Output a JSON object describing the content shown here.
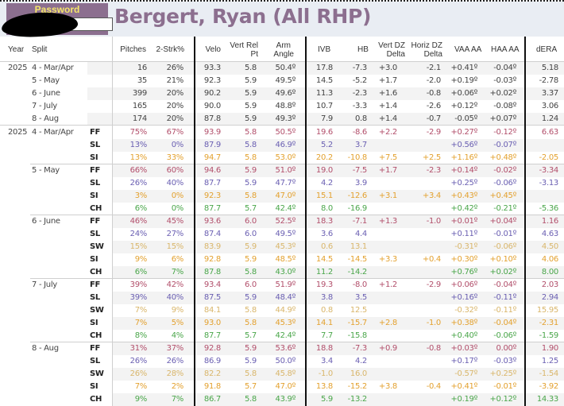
{
  "header": {
    "password_label": "Password",
    "password_value": "",
    "title": "Bergert, Ryan (All RHP)"
  },
  "colors": {
    "title": "#8c6f8f",
    "password_label": "#f5e66a",
    "FF": "#b24f6b",
    "SL": "#6a5fb2",
    "SW": "#d9b66b",
    "SI": "#e3a12f",
    "CH": "#4aa64a"
  },
  "columns": {
    "year": "Year",
    "split": "Split",
    "pitches": "Pitches",
    "two_strk": "2-Strk%",
    "velo": "Velo",
    "vert_rel_1": "Vert Rel",
    "vert_rel_2": "Pt",
    "arm_1": "Arm",
    "arm_2": "Angle",
    "ivb": "IVB",
    "hb": "HB",
    "vdz_1": "Vert DZ",
    "vdz_2": "Delta",
    "hdz_1": "Horiz DZ",
    "hdz_2": "Delta",
    "vaa": "VAA AA",
    "haa": "HAA AA",
    "dera": "dERA"
  },
  "summary_rows": [
    {
      "year": "2025",
      "split": "4 - Mar/Apr",
      "pitches": "16",
      "two_strk": "26%",
      "velo": "93.3",
      "vrp": "5.8",
      "arm": "50.4º",
      "ivb": "17.8",
      "hb": "-7.3",
      "vdz": "+3.0",
      "hdz": "-2.1",
      "vaa": "+0.41º",
      "haa": "-0.04º",
      "dera": "5.18"
    },
    {
      "year": "",
      "split": "5 - May",
      "pitches": "35",
      "two_strk": "21%",
      "velo": "92.3",
      "vrp": "5.9",
      "arm": "49.5º",
      "ivb": "14.5",
      "hb": "-5.2",
      "vdz": "+1.7",
      "hdz": "-2.0",
      "vaa": "+0.19º",
      "haa": "-0.03º",
      "dera": "-2.78"
    },
    {
      "year": "",
      "split": "6 - June",
      "pitches": "399",
      "two_strk": "20%",
      "velo": "90.2",
      "vrp": "5.9",
      "arm": "49.6º",
      "ivb": "11.3",
      "hb": "-2.3",
      "vdz": "+1.6",
      "hdz": "-0.8",
      "vaa": "+0.06º",
      "haa": "+0.02º",
      "dera": "3.37"
    },
    {
      "year": "",
      "split": "7 - July",
      "pitches": "165",
      "two_strk": "20%",
      "velo": "90.0",
      "vrp": "5.9",
      "arm": "48.8º",
      "ivb": "10.7",
      "hb": "-3.3",
      "vdz": "+1.4",
      "hdz": "-2.6",
      "vaa": "+0.12º",
      "haa": "-0.08º",
      "dera": "3.06"
    },
    {
      "year": "",
      "split": "8 - Aug",
      "pitches": "174",
      "two_strk": "20%",
      "velo": "87.8",
      "vrp": "5.9",
      "arm": "49.3º",
      "ivb": "7.9",
      "hb": "0.8",
      "vdz": "+1.4",
      "hdz": "-0.7",
      "vaa": "-0.05º",
      "haa": "+0.07º",
      "dera": "1.24"
    }
  ],
  "pitch_rows": [
    {
      "year": "2025",
      "split": "4 - Mar/Apr",
      "type": "FF",
      "pitches": "75%",
      "two_strk": "67%",
      "velo": "93.9",
      "vrp": "5.8",
      "arm": "50.5º",
      "ivb": "19.6",
      "hb": "-8.6",
      "vdz": "+2.2",
      "hdz": "-2.9",
      "vaa": "+0.27º",
      "haa": "-0.12º",
      "dera": "6.63"
    },
    {
      "year": "",
      "split": "",
      "type": "SL",
      "pitches": "13%",
      "two_strk": "0%",
      "velo": "87.9",
      "vrp": "5.8",
      "arm": "46.9º",
      "ivb": "5.2",
      "hb": "3.7",
      "vdz": "",
      "hdz": "",
      "vaa": "+0.56º",
      "haa": "-0.07º",
      "dera": ""
    },
    {
      "year": "",
      "split": "",
      "type": "SI",
      "pitches": "13%",
      "two_strk": "33%",
      "velo": "94.7",
      "vrp": "5.8",
      "arm": "53.0º",
      "ivb": "20.2",
      "hb": "-10.8",
      "vdz": "+7.5",
      "hdz": "+2.5",
      "vaa": "+1.16º",
      "haa": "+0.48º",
      "dera": "-2.05"
    },
    {
      "year": "",
      "split": "5 - May",
      "type": "FF",
      "pitches": "66%",
      "two_strk": "60%",
      "velo": "94.6",
      "vrp": "5.9",
      "arm": "51.0º",
      "ivb": "19.0",
      "hb": "-7.5",
      "vdz": "+1.7",
      "hdz": "-2.3",
      "vaa": "+0.14º",
      "haa": "-0.02º",
      "dera": "-3.34"
    },
    {
      "year": "",
      "split": "",
      "type": "SL",
      "pitches": "26%",
      "two_strk": "40%",
      "velo": "87.7",
      "vrp": "5.9",
      "arm": "47.7º",
      "ivb": "4.2",
      "hb": "3.9",
      "vdz": "",
      "hdz": "",
      "vaa": "+0.25º",
      "haa": "-0.06º",
      "dera": "-3.13"
    },
    {
      "year": "",
      "split": "",
      "type": "SI",
      "pitches": "3%",
      "two_strk": "0%",
      "velo": "92.3",
      "vrp": "5.8",
      "arm": "47.0º",
      "ivb": "15.1",
      "hb": "-12.6",
      "vdz": "+3.1",
      "hdz": "+3.4",
      "vaa": "+0.43º",
      "haa": "+0.45º",
      "dera": ""
    },
    {
      "year": "",
      "split": "",
      "type": "CH",
      "pitches": "6%",
      "two_strk": "0%",
      "velo": "87.7",
      "vrp": "5.7",
      "arm": "42.4º",
      "ivb": "8.0",
      "hb": "-16.9",
      "vdz": "",
      "hdz": "",
      "vaa": "+0.42º",
      "haa": "-0.21º",
      "dera": "-5.36"
    },
    {
      "year": "",
      "split": "6 - June",
      "type": "FF",
      "pitches": "46%",
      "two_strk": "45%",
      "velo": "93.6",
      "vrp": "6.0",
      "arm": "52.5º",
      "ivb": "18.3",
      "hb": "-7.1",
      "vdz": "+1.3",
      "hdz": "-1.0",
      "vaa": "+0.01º",
      "haa": "+0.04º",
      "dera": "1.16"
    },
    {
      "year": "",
      "split": "",
      "type": "SL",
      "pitches": "24%",
      "two_strk": "27%",
      "velo": "87.4",
      "vrp": "6.0",
      "arm": "49.5º",
      "ivb": "3.6",
      "hb": "4.4",
      "vdz": "",
      "hdz": "",
      "vaa": "+0.11º",
      "haa": "-0.01º",
      "dera": "4.63"
    },
    {
      "year": "",
      "split": "",
      "type": "SW",
      "pitches": "15%",
      "two_strk": "15%",
      "velo": "83.9",
      "vrp": "5.9",
      "arm": "45.3º",
      "ivb": "0.6",
      "hb": "13.1",
      "vdz": "",
      "hdz": "",
      "vaa": "-0.31º",
      "haa": "-0.06º",
      "dera": "4.50"
    },
    {
      "year": "",
      "split": "",
      "type": "SI",
      "pitches": "9%",
      "two_strk": "6%",
      "velo": "92.8",
      "vrp": "5.9",
      "arm": "48.5º",
      "ivb": "14.5",
      "hb": "-14.5",
      "vdz": "+3.3",
      "hdz": "+0.4",
      "vaa": "+0.30º",
      "haa": "+0.10º",
      "dera": "4.06"
    },
    {
      "year": "",
      "split": "",
      "type": "CH",
      "pitches": "6%",
      "two_strk": "7%",
      "velo": "87.8",
      "vrp": "5.8",
      "arm": "43.0º",
      "ivb": "11.2",
      "hb": "-14.2",
      "vdz": "",
      "hdz": "",
      "vaa": "+0.76º",
      "haa": "+0.02º",
      "dera": "8.00"
    },
    {
      "year": "",
      "split": "7 - July",
      "type": "FF",
      "pitches": "39%",
      "two_strk": "42%",
      "velo": "93.4",
      "vrp": "6.0",
      "arm": "51.9º",
      "ivb": "19.3",
      "hb": "-8.0",
      "vdz": "+1.2",
      "hdz": "-2.9",
      "vaa": "+0.06º",
      "haa": "-0.04º",
      "dera": "2.03"
    },
    {
      "year": "",
      "split": "",
      "type": "SL",
      "pitches": "39%",
      "two_strk": "40%",
      "velo": "87.5",
      "vrp": "5.9",
      "arm": "48.4º",
      "ivb": "3.8",
      "hb": "3.5",
      "vdz": "",
      "hdz": "",
      "vaa": "+0.16º",
      "haa": "-0.11º",
      "dera": "2.94"
    },
    {
      "year": "",
      "split": "",
      "type": "SW",
      "pitches": "7%",
      "two_strk": "9%",
      "velo": "84.1",
      "vrp": "5.8",
      "arm": "44.9º",
      "ivb": "0.8",
      "hb": "12.5",
      "vdz": "",
      "hdz": "",
      "vaa": "-0.32º",
      "haa": "-0.11º",
      "dera": "15.95"
    },
    {
      "year": "",
      "split": "",
      "type": "SI",
      "pitches": "7%",
      "two_strk": "5%",
      "velo": "93.0",
      "vrp": "5.8",
      "arm": "45.3º",
      "ivb": "14.1",
      "hb": "-15.7",
      "vdz": "+2.8",
      "hdz": "-1.0",
      "vaa": "+0.38º",
      "haa": "-0.04º",
      "dera": "-2.31"
    },
    {
      "year": "",
      "split": "",
      "type": "CH",
      "pitches": "8%",
      "two_strk": "4%",
      "velo": "87.7",
      "vrp": "5.7",
      "arm": "42.4º",
      "ivb": "7.7",
      "hb": "-15.8",
      "vdz": "",
      "hdz": "",
      "vaa": "+0.40º",
      "haa": "-0.06º",
      "dera": "-1.59"
    },
    {
      "year": "",
      "split": "8 - Aug",
      "type": "FF",
      "pitches": "31%",
      "two_strk": "37%",
      "velo": "92.8",
      "vrp": "5.9",
      "arm": "53.6º",
      "ivb": "18.8",
      "hb": "-7.3",
      "vdz": "+0.9",
      "hdz": "-0.8",
      "vaa": "+0.03º",
      "haa": "0.00º",
      "dera": "1.90"
    },
    {
      "year": "",
      "split": "",
      "type": "SL",
      "pitches": "26%",
      "two_strk": "26%",
      "velo": "86.9",
      "vrp": "5.9",
      "arm": "50.0º",
      "ivb": "3.4",
      "hb": "4.2",
      "vdz": "",
      "hdz": "",
      "vaa": "+0.17º",
      "haa": "-0.03º",
      "dera": "1.25"
    },
    {
      "year": "",
      "split": "",
      "type": "SW",
      "pitches": "26%",
      "two_strk": "28%",
      "velo": "82.2",
      "vrp": "5.8",
      "arm": "45.8º",
      "ivb": "-1.0",
      "hb": "16.0",
      "vdz": "",
      "hdz": "",
      "vaa": "-0.57º",
      "haa": "+0.25º",
      "dera": "-1.54"
    },
    {
      "year": "",
      "split": "",
      "type": "SI",
      "pitches": "7%",
      "two_strk": "2%",
      "velo": "91.8",
      "vrp": "5.7",
      "arm": "47.0º",
      "ivb": "13.8",
      "hb": "-15.2",
      "vdz": "+3.8",
      "hdz": "-0.4",
      "vaa": "+0.41º",
      "haa": "-0.01º",
      "dera": "-3.92"
    },
    {
      "year": "",
      "split": "",
      "type": "CH",
      "pitches": "9%",
      "two_strk": "7%",
      "velo": "86.7",
      "vrp": "5.8",
      "arm": "43.9º",
      "ivb": "5.9",
      "hb": "-13.2",
      "vdz": "",
      "hdz": "",
      "vaa": "+0.19º",
      "haa": "+0.12º",
      "dera": "14.33"
    }
  ]
}
